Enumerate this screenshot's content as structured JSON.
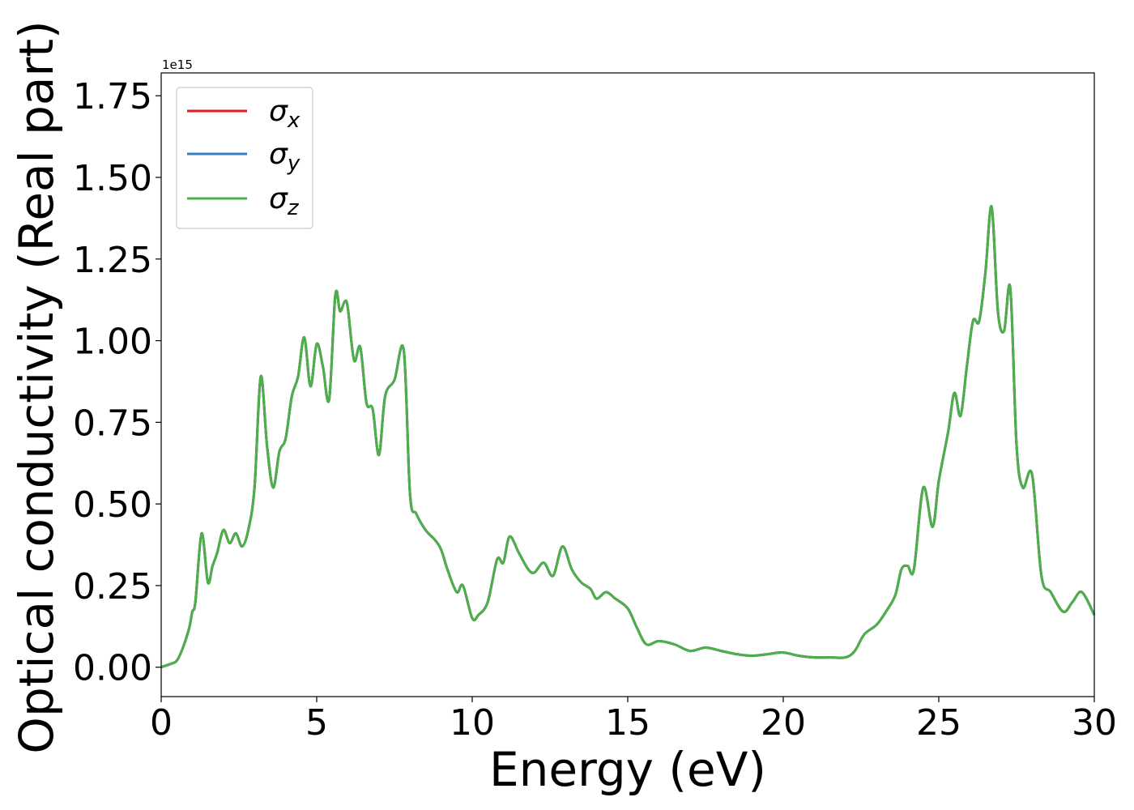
{
  "chart_data": {
    "type": "line",
    "xlabel": "Energy (eV)",
    "ylabel": "Optical conductivity (Real part)",
    "offset_label": "1e15",
    "xlim": [
      0,
      30
    ],
    "ylim": [
      -0.09,
      1.82
    ],
    "y_scale_note_multiplier": 1000000000000000.0,
    "x_ticks": [
      0,
      5,
      10,
      15,
      20,
      25,
      30
    ],
    "x_tick_labels": [
      "0",
      "5",
      "10",
      "15",
      "20",
      "25",
      "30"
    ],
    "y_ticks": [
      0.0,
      0.25,
      0.5,
      0.75,
      1.0,
      1.25,
      1.5,
      1.75
    ],
    "y_tick_labels": [
      "0.00",
      "0.25",
      "0.50",
      "0.75",
      "1.00",
      "1.25",
      "1.50",
      "1.75"
    ],
    "grid": false,
    "legend_position": "upper-left",
    "series": [
      {
        "name": "σ",
        "subscript": "x",
        "color": "#e41a1c"
      },
      {
        "name": "σ",
        "subscript": "y",
        "color": "#377eb8"
      },
      {
        "name": "σ",
        "subscript": "z",
        "color": "#4daf4a"
      }
    ],
    "x": [
      0,
      0.3,
      0.5,
      0.7,
      0.9,
      1.0,
      1.1,
      1.3,
      1.5,
      1.65,
      1.8,
      2.0,
      2.2,
      2.4,
      2.6,
      2.8,
      3.0,
      3.2,
      3.4,
      3.6,
      3.8,
      4.0,
      4.2,
      4.4,
      4.6,
      4.8,
      5.0,
      5.2,
      5.4,
      5.6,
      5.75,
      5.9,
      6.0,
      6.2,
      6.4,
      6.6,
      6.8,
      7.0,
      7.2,
      7.5,
      7.8,
      8.0,
      8.2,
      8.5,
      8.8,
      9.0,
      9.2,
      9.5,
      9.7,
      10.0,
      10.2,
      10.5,
      10.8,
      11.0,
      11.2,
      11.5,
      11.8,
      12.0,
      12.3,
      12.6,
      12.9,
      13.2,
      13.5,
      13.8,
      14.0,
      14.3,
      14.6,
      15.0,
      15.3,
      15.6,
      16.0,
      16.5,
      17.0,
      17.5,
      18.0,
      18.5,
      19.0,
      19.5,
      20.0,
      20.5,
      21.0,
      21.5,
      22.0,
      22.3,
      22.6,
      23.0,
      23.3,
      23.6,
      23.8,
      24.0,
      24.2,
      24.5,
      24.8,
      25.0,
      25.3,
      25.5,
      25.7,
      25.9,
      26.1,
      26.3,
      26.5,
      26.7,
      26.9,
      27.1,
      27.3,
      27.5,
      27.7,
      28.0,
      28.3,
      28.6,
      29.0,
      29.3,
      29.6,
      30.0
    ],
    "values": [
      0.0,
      0.01,
      0.02,
      0.06,
      0.12,
      0.17,
      0.2,
      0.41,
      0.26,
      0.31,
      0.35,
      0.42,
      0.38,
      0.41,
      0.37,
      0.42,
      0.55,
      0.89,
      0.68,
      0.55,
      0.66,
      0.7,
      0.83,
      0.89,
      1.01,
      0.86,
      0.99,
      0.92,
      0.82,
      1.14,
      1.09,
      1.12,
      1.1,
      0.94,
      0.98,
      0.81,
      0.79,
      0.65,
      0.83,
      0.88,
      0.97,
      0.53,
      0.47,
      0.42,
      0.39,
      0.36,
      0.3,
      0.23,
      0.25,
      0.15,
      0.16,
      0.2,
      0.33,
      0.32,
      0.4,
      0.35,
      0.3,
      0.29,
      0.32,
      0.28,
      0.37,
      0.3,
      0.26,
      0.24,
      0.21,
      0.23,
      0.21,
      0.18,
      0.12,
      0.07,
      0.08,
      0.07,
      0.05,
      0.06,
      0.05,
      0.04,
      0.035,
      0.04,
      0.045,
      0.035,
      0.03,
      0.03,
      0.03,
      0.05,
      0.1,
      0.13,
      0.17,
      0.22,
      0.3,
      0.31,
      0.3,
      0.55,
      0.43,
      0.57,
      0.72,
      0.84,
      0.77,
      0.92,
      1.06,
      1.06,
      1.21,
      1.41,
      1.09,
      1.03,
      1.16,
      0.68,
      0.55,
      0.59,
      0.28,
      0.23,
      0.17,
      0.2,
      0.23,
      0.16
    ]
  }
}
